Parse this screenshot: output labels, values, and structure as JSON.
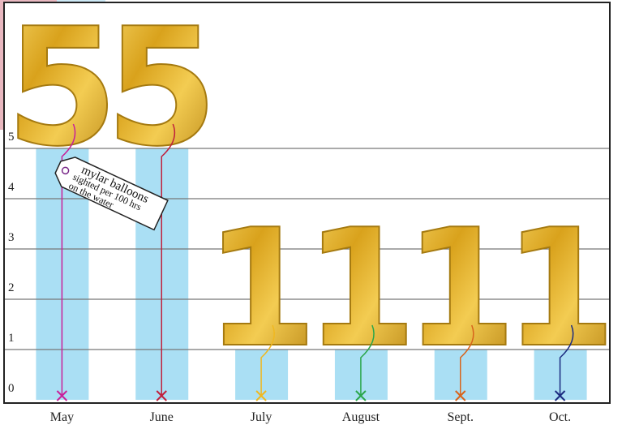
{
  "chart_data": {
    "type": "bar",
    "categories": [
      "May",
      "June",
      "July",
      "August",
      "Sept.",
      "Oct."
    ],
    "values": [
      5,
      5,
      1,
      1,
      1,
      1
    ],
    "color": "#aadff4",
    "string_colors": [
      "#c8209a",
      "#c0203c",
      "#f0b820",
      "#2aa64a",
      "#d8641c",
      "#1c2c80"
    ],
    "ylim": [
      0,
      5
    ],
    "yticks": [
      0,
      1,
      2,
      3,
      4,
      5
    ],
    "grid": true,
    "annotation": [
      "mylar balloons",
      "sighted per 100 hrs",
      "on the water"
    ]
  }
}
